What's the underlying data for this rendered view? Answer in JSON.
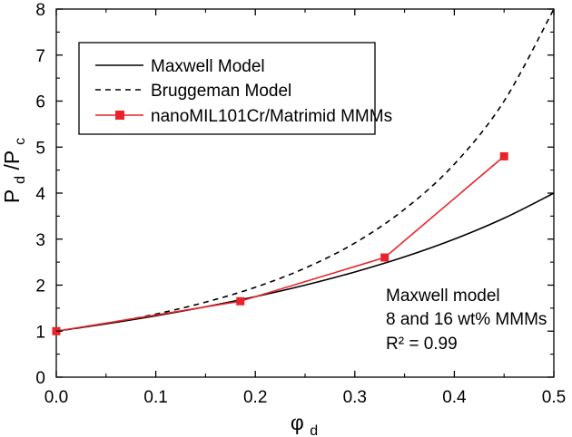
{
  "chart_data": {
    "type": "line",
    "xlim": [
      0.0,
      0.5
    ],
    "ylim": [
      0,
      8
    ],
    "xticks": [
      0.0,
      0.1,
      0.2,
      0.3,
      0.4,
      0.5
    ],
    "xtick_labels": [
      "0.0",
      "0.1",
      "0.2",
      "0.3",
      "0.4",
      "0.5"
    ],
    "yticks": [
      0,
      1,
      2,
      3,
      4,
      5,
      6,
      7,
      8
    ],
    "ytick_labels": [
      "0",
      "1",
      "2",
      "3",
      "4",
      "5",
      "6",
      "7",
      "8"
    ],
    "xlabel": {
      "main": "φ",
      "sub": "d"
    },
    "ylabel": {
      "p1": "P",
      "s1": "d",
      "slash": "/P",
      "s2": "c"
    },
    "grid": false,
    "legend_position": "top-left",
    "series": [
      {
        "name": "Maxwell Model",
        "style": "solid",
        "color": "#000000",
        "x": [
          0.0,
          0.05,
          0.1,
          0.15,
          0.2,
          0.25,
          0.3,
          0.35,
          0.4,
          0.45,
          0.5
        ],
        "y": [
          1.0,
          1.158,
          1.333,
          1.529,
          1.75,
          2.0,
          2.286,
          2.615,
          3.0,
          3.455,
          4.0
        ]
      },
      {
        "name": "Bruggeman Model",
        "style": "dashed",
        "color": "#000000",
        "x": [
          0.0,
          0.05,
          0.1,
          0.15,
          0.2,
          0.25,
          0.3,
          0.35,
          0.4,
          0.45,
          0.5
        ],
        "y": [
          1.0,
          1.165,
          1.372,
          1.63,
          1.953,
          2.37,
          2.915,
          3.65,
          4.63,
          6.0,
          8.0
        ]
      },
      {
        "name": "nanoMIL101Cr/Matrimid MMMs",
        "style": "solid",
        "color": "#e8242a",
        "marker": "square",
        "x": [
          0.0,
          0.185,
          0.33,
          0.45
        ],
        "y": [
          1.0,
          1.65,
          2.6,
          4.8
        ]
      }
    ],
    "annotation": [
      "Maxwell model",
      "8 and 16 wt% MMMs",
      "R² = 0.99"
    ]
  }
}
